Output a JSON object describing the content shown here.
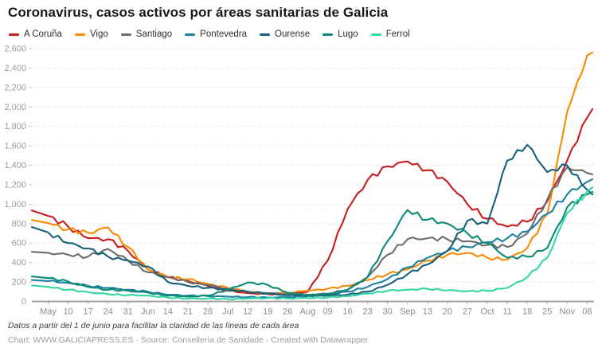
{
  "header": {
    "title": "Coronavirus, casos activos por áreas sanitarias de Galicia"
  },
  "chart_data": {
    "type": "line",
    "title": "Coronavirus, casos activos por áreas sanitarias de Galicia",
    "xlabel": "",
    "ylabel": "",
    "ylim": [
      0,
      2600
    ],
    "y_ticks": [
      0,
      200,
      400,
      600,
      800,
      1000,
      1200,
      1400,
      1600,
      1800,
      2000,
      2200,
      2400,
      2600
    ],
    "grid": "dotted-horizontal",
    "legend_position": "top",
    "x_labels": [
      "May",
      "10",
      "17",
      "24",
      "31",
      "Jun",
      "14",
      "21",
      "28",
      "Jul",
      "12",
      "19",
      "26",
      "Aug",
      "09",
      "16",
      "23",
      "30",
      "Sep",
      "13",
      "20",
      "27",
      "Oct",
      "11",
      "18",
      "25",
      "Nov",
      "08"
    ],
    "series": [
      {
        "name": "A Coruña",
        "color": "#c71e1d",
        "values": [
          880,
          770,
          650,
          640,
          520,
          330,
          250,
          210,
          160,
          110,
          85,
          75,
          80,
          100,
          420,
          950,
          1250,
          1390,
          1440,
          1350,
          1230,
          1000,
          850,
          770,
          820,
          1030,
          1450,
          1890
        ]
      },
      {
        "name": "Vigo",
        "color": "#f78b05",
        "values": [
          805,
          740,
          705,
          760,
          560,
          330,
          250,
          230,
          180,
          140,
          100,
          80,
          90,
          110,
          130,
          160,
          220,
          280,
          330,
          420,
          480,
          500,
          450,
          430,
          550,
          900,
          1950,
          2530
        ]
      },
      {
        "name": "Santiago",
        "color": "#6d6d6d",
        "values": [
          500,
          480,
          460,
          540,
          420,
          300,
          250,
          200,
          170,
          130,
          100,
          85,
          75,
          70,
          80,
          120,
          250,
          480,
          640,
          650,
          640,
          620,
          580,
          560,
          700,
          1050,
          1380,
          1320
        ]
      },
      {
        "name": "Pontevedra",
        "color": "#1d81a2",
        "values": [
          210,
          190,
          160,
          140,
          120,
          100,
          70,
          60,
          55,
          50,
          45,
          40,
          45,
          55,
          70,
          100,
          150,
          230,
          350,
          450,
          520,
          560,
          610,
          650,
          720,
          900,
          1100,
          1230
        ]
      },
      {
        "name": "Ourense",
        "color": "#15607a",
        "values": [
          710,
          600,
          545,
          460,
          420,
          360,
          200,
          160,
          140,
          120,
          100,
          80,
          65,
          60,
          60,
          70,
          100,
          170,
          280,
          380,
          520,
          830,
          800,
          1450,
          1610,
          1330,
          1400,
          1150
        ]
      },
      {
        "name": "Lugo",
        "color": "#0e8a74",
        "values": [
          240,
          205,
          150,
          120,
          110,
          90,
          60,
          50,
          60,
          120,
          195,
          170,
          90,
          65,
          75,
          120,
          250,
          620,
          940,
          840,
          800,
          700,
          600,
          450,
          460,
          550,
          970,
          1100
        ]
      },
      {
        "name": "Ferrol",
        "color": "#33d7a4",
        "values": [
          150,
          120,
          95,
          75,
          65,
          60,
          40,
          30,
          30,
          25,
          30,
          35,
          30,
          35,
          40,
          55,
          80,
          110,
          120,
          130,
          115,
          105,
          110,
          140,
          250,
          450,
          910,
          1130
        ]
      }
    ]
  },
  "footer": {
    "note": "Datos a partir del 1 de junio para facilitar la claridad de las líneas de cada área",
    "credit": "Chart: WWW.GALICIAPRESS.ES · Source: Consellería de Sanidade · Created with Datawrapper"
  }
}
